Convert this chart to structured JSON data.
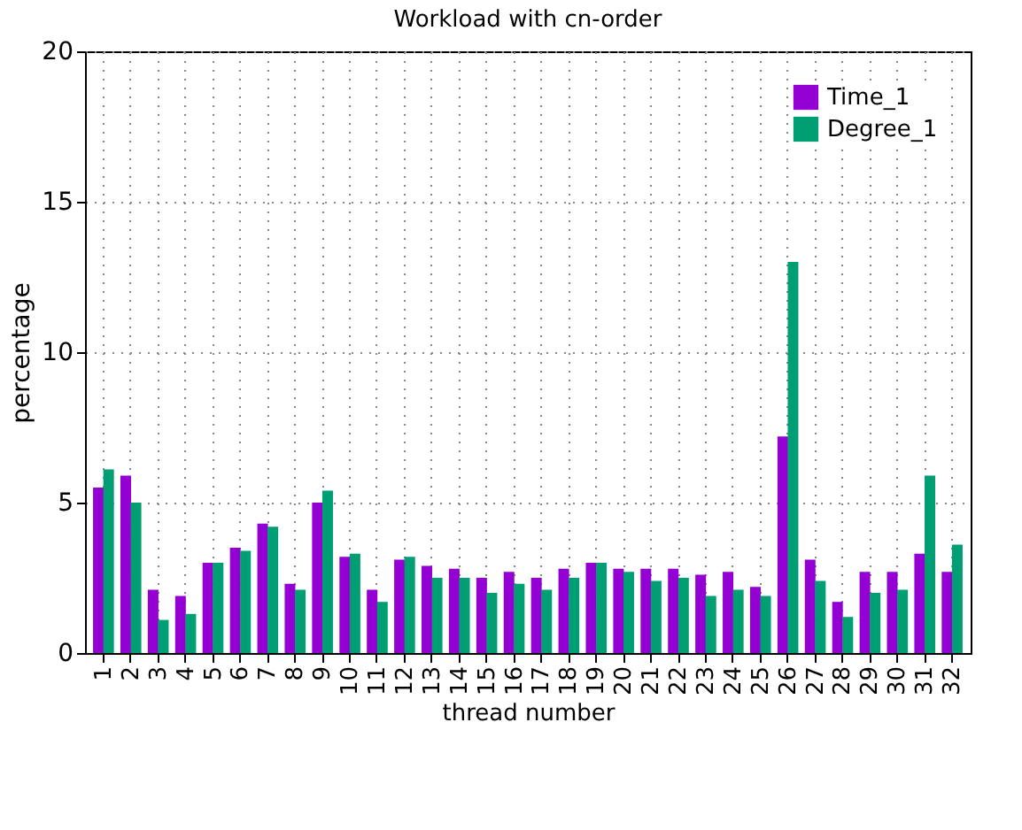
{
  "chart_data": {
    "type": "bar",
    "title": "Workload with cn-order",
    "xlabel": "thread number",
    "ylabel": "percentage",
    "categories": [
      "1",
      "2",
      "3",
      "4",
      "5",
      "6",
      "7",
      "8",
      "9",
      "10",
      "11",
      "12",
      "13",
      "14",
      "15",
      "16",
      "17",
      "18",
      "19",
      "20",
      "21",
      "22",
      "23",
      "24",
      "25",
      "26",
      "27",
      "28",
      "29",
      "30",
      "31",
      "32"
    ],
    "series": [
      {
        "name": "Time_1",
        "color": "#9400d3",
        "values": [
          5.5,
          5.9,
          2.1,
          1.9,
          3.0,
          3.5,
          4.3,
          2.3,
          5.0,
          3.2,
          2.1,
          3.1,
          2.9,
          2.8,
          2.5,
          2.7,
          2.5,
          2.8,
          3.0,
          2.8,
          2.8,
          2.8,
          2.6,
          2.7,
          2.2,
          7.2,
          3.1,
          1.7,
          2.7,
          2.7,
          3.3,
          2.7
        ]
      },
      {
        "name": "Degree_1",
        "color": "#009e73",
        "values": [
          6.1,
          5.0,
          1.1,
          1.3,
          3.0,
          3.4,
          4.2,
          2.1,
          5.4,
          3.3,
          1.7,
          3.2,
          2.5,
          2.5,
          2.0,
          2.3,
          2.1,
          2.5,
          3.0,
          2.7,
          2.4,
          2.5,
          1.9,
          2.1,
          1.9,
          13.0,
          2.4,
          1.2,
          2.0,
          2.1,
          5.9,
          3.6
        ]
      }
    ],
    "ylim": [
      0,
      20
    ],
    "yticks": [
      0,
      5,
      10,
      15,
      20
    ],
    "grid": true,
    "legend": "top right"
  }
}
